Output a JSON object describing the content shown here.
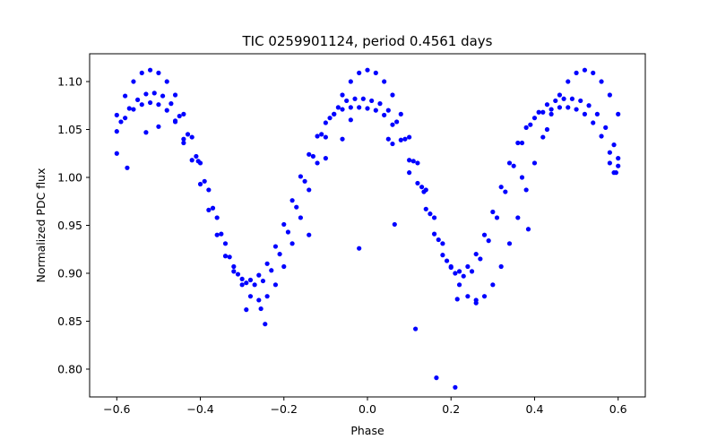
{
  "chart_data": {
    "type": "scatter",
    "title": "TIC 0259901124, period 0.4561 days",
    "xlabel": "Phase",
    "ylabel": "Normalized PDC flux",
    "xlim": [
      -0.665,
      0.665
    ],
    "ylim": [
      0.771,
      1.129
    ],
    "xticks": [
      -0.6,
      -0.4,
      -0.2,
      0.0,
      0.2,
      0.4,
      0.6
    ],
    "xtick_labels": [
      "−0.6",
      "−0.4",
      "−0.2",
      "0.0",
      "0.2",
      "0.4",
      "0.6"
    ],
    "yticks": [
      0.8,
      0.85,
      0.9,
      0.95,
      1.0,
      1.05,
      1.1
    ],
    "ytick_labels": [
      "0.80",
      "0.85",
      "0.90",
      "0.95",
      "1.00",
      "1.05",
      "1.10"
    ],
    "grid": false,
    "marker_color": "#0000ff",
    "series": [
      {
        "points": [
          [
            -0.6,
            1.065
          ],
          [
            -0.58,
            1.085
          ],
          [
            -0.56,
            1.1
          ],
          [
            -0.54,
            1.109
          ],
          [
            -0.52,
            1.112
          ],
          [
            -0.5,
            1.109
          ],
          [
            -0.48,
            1.1
          ],
          [
            -0.46,
            1.086
          ],
          [
            -0.44,
            1.066
          ],
          [
            -0.42,
            1.042
          ],
          [
            -0.4,
            1.015
          ],
          [
            -0.38,
            0.987
          ],
          [
            -0.36,
            0.958
          ],
          [
            -0.34,
            0.931
          ],
          [
            -0.32,
            0.907
          ],
          [
            -0.3,
            0.888
          ],
          [
            -0.28,
            0.876
          ],
          [
            -0.26,
            0.872
          ],
          [
            -0.24,
            0.876
          ],
          [
            -0.22,
            0.888
          ],
          [
            -0.2,
            0.907
          ],
          [
            -0.18,
            0.931
          ],
          [
            -0.16,
            0.958
          ],
          [
            -0.14,
            0.987
          ],
          [
            -0.12,
            1.015
          ],
          [
            -0.1,
            1.042
          ],
          [
            -0.08,
            1.066
          ],
          [
            -0.06,
            1.086
          ],
          [
            -0.04,
            1.1
          ],
          [
            -0.02,
            1.109
          ],
          [
            0.0,
            1.112
          ],
          [
            0.02,
            1.109
          ],
          [
            0.04,
            1.1
          ],
          [
            0.06,
            1.086
          ],
          [
            0.08,
            1.066
          ],
          [
            0.1,
            1.042
          ],
          [
            0.12,
            1.015
          ],
          [
            0.14,
            0.987
          ],
          [
            0.16,
            0.958
          ],
          [
            0.18,
            0.931
          ],
          [
            0.2,
            0.907
          ],
          [
            0.22,
            0.888
          ],
          [
            0.24,
            0.876
          ],
          [
            0.26,
            0.872
          ],
          [
            0.28,
            0.876
          ],
          [
            0.3,
            0.888
          ],
          [
            0.32,
            0.907
          ],
          [
            0.34,
            0.931
          ],
          [
            0.36,
            0.958
          ],
          [
            0.38,
            0.987
          ],
          [
            0.4,
            1.015
          ],
          [
            0.42,
            1.042
          ],
          [
            0.44,
            1.066
          ],
          [
            0.46,
            1.086
          ],
          [
            0.48,
            1.1
          ],
          [
            0.5,
            1.109
          ],
          [
            0.52,
            1.112
          ],
          [
            0.54,
            1.109
          ],
          [
            0.56,
            1.1
          ],
          [
            0.58,
            1.086
          ],
          [
            0.6,
            1.066
          ],
          [
            -0.59,
            1.058
          ],
          [
            -0.57,
            1.072
          ],
          [
            -0.55,
            1.081
          ],
          [
            -0.53,
            1.087
          ],
          [
            -0.51,
            1.088
          ],
          [
            -0.49,
            1.085
          ],
          [
            -0.47,
            1.077
          ],
          [
            -0.45,
            1.064
          ],
          [
            -0.43,
            1.045
          ],
          [
            -0.41,
            1.022
          ],
          [
            -0.39,
            0.996
          ],
          [
            -0.37,
            0.968
          ],
          [
            -0.35,
            0.941
          ],
          [
            -0.33,
            0.917
          ],
          [
            -0.31,
            0.899
          ],
          [
            -0.29,
            0.89
          ],
          [
            -0.27,
            0.888
          ],
          [
            -0.25,
            0.892
          ],
          [
            -0.23,
            0.903
          ],
          [
            -0.21,
            0.92
          ],
          [
            -0.19,
            0.943
          ],
          [
            -0.17,
            0.969
          ],
          [
            -0.15,
            0.996
          ],
          [
            -0.13,
            1.022
          ],
          [
            -0.11,
            1.045
          ],
          [
            -0.09,
            1.062
          ],
          [
            -0.07,
            1.073
          ],
          [
            -0.05,
            1.08
          ],
          [
            -0.03,
            1.082
          ],
          [
            -0.01,
            1.082
          ],
          [
            0.01,
            1.08
          ],
          [
            0.03,
            1.077
          ],
          [
            0.05,
            1.07
          ],
          [
            0.07,
            1.058
          ],
          [
            0.09,
            1.04
          ],
          [
            0.11,
            1.017
          ],
          [
            0.13,
            0.99
          ],
          [
            0.15,
            0.962
          ],
          [
            0.17,
            0.935
          ],
          [
            0.19,
            0.913
          ],
          [
            0.21,
            0.9
          ],
          [
            0.23,
            0.897
          ],
          [
            0.25,
            0.902
          ],
          [
            0.27,
            0.915
          ],
          [
            0.29,
            0.934
          ],
          [
            0.31,
            0.958
          ],
          [
            0.33,
            0.985
          ],
          [
            0.35,
            1.012
          ],
          [
            0.37,
            1.036
          ],
          [
            0.39,
            1.055
          ],
          [
            0.41,
            1.068
          ],
          [
            0.43,
            1.076
          ],
          [
            0.45,
            1.08
          ],
          [
            0.47,
            1.082
          ],
          [
            0.49,
            1.082
          ],
          [
            0.51,
            1.08
          ],
          [
            0.53,
            1.075
          ],
          [
            0.55,
            1.066
          ],
          [
            0.57,
            1.052
          ],
          [
            0.59,
            1.034
          ],
          [
            -0.6,
            1.048
          ],
          [
            -0.58,
            1.062
          ],
          [
            -0.56,
            1.071
          ],
          [
            -0.54,
            1.076
          ],
          [
            -0.52,
            1.078
          ],
          [
            -0.5,
            1.076
          ],
          [
            -0.48,
            1.07
          ],
          [
            -0.46,
            1.058
          ],
          [
            -0.44,
            1.04
          ],
          [
            -0.42,
            1.018
          ],
          [
            -0.4,
            0.993
          ],
          [
            -0.38,
            0.966
          ],
          [
            -0.36,
            0.94
          ],
          [
            -0.34,
            0.918
          ],
          [
            -0.32,
            0.902
          ],
          [
            -0.3,
            0.894
          ],
          [
            -0.28,
            0.893
          ],
          [
            -0.26,
            0.898
          ],
          [
            -0.24,
            0.91
          ],
          [
            -0.22,
            0.928
          ],
          [
            -0.2,
            0.951
          ],
          [
            -0.18,
            0.976
          ],
          [
            -0.16,
            1.001
          ],
          [
            -0.14,
            1.024
          ],
          [
            -0.12,
            1.043
          ],
          [
            -0.1,
            1.057
          ],
          [
            -0.08,
            1.066
          ],
          [
            -0.06,
            1.071
          ],
          [
            -0.04,
            1.073
          ],
          [
            -0.02,
            1.073
          ],
          [
            0.0,
            1.072
          ],
          [
            0.02,
            1.07
          ],
          [
            0.04,
            1.065
          ],
          [
            0.06,
            1.055
          ],
          [
            0.08,
            1.039
          ],
          [
            0.1,
            1.018
          ],
          [
            0.12,
            0.994
          ],
          [
            0.14,
            0.967
          ],
          [
            0.16,
            0.941
          ],
          [
            0.18,
            0.919
          ],
          [
            0.2,
            0.906
          ],
          [
            0.22,
            0.902
          ],
          [
            0.24,
            0.907
          ],
          [
            0.26,
            0.92
          ],
          [
            0.28,
            0.94
          ],
          [
            0.3,
            0.964
          ],
          [
            0.32,
            0.99
          ],
          [
            0.34,
            1.015
          ],
          [
            0.36,
            1.036
          ],
          [
            0.38,
            1.052
          ],
          [
            0.4,
            1.062
          ],
          [
            0.42,
            1.068
          ],
          [
            0.44,
            1.071
          ],
          [
            0.46,
            1.073
          ],
          [
            0.48,
            1.073
          ],
          [
            0.5,
            1.071
          ],
          [
            0.52,
            1.066
          ],
          [
            0.54,
            1.057
          ],
          [
            0.56,
            1.043
          ],
          [
            0.58,
            1.026
          ],
          [
            0.6,
            1.012
          ],
          [
            -0.6,
            1.025
          ],
          [
            -0.575,
            1.01
          ],
          [
            -0.53,
            1.047
          ],
          [
            -0.5,
            1.053
          ],
          [
            -0.46,
            1.059
          ],
          [
            -0.44,
            1.036
          ],
          [
            -0.405,
            1.017
          ],
          [
            -0.255,
            0.863
          ],
          [
            -0.245,
            0.847
          ],
          [
            -0.29,
            0.862
          ],
          [
            -0.14,
            0.94
          ],
          [
            -0.02,
            0.926
          ],
          [
            0.065,
            0.951
          ],
          [
            0.115,
            0.842
          ],
          [
            0.135,
            0.985
          ],
          [
            0.165,
            0.791
          ],
          [
            0.21,
            0.781
          ],
          [
            0.215,
            0.873
          ],
          [
            0.26,
            0.869
          ],
          [
            0.385,
            0.946
          ],
          [
            0.37,
            1.0
          ],
          [
            0.43,
            1.05
          ],
          [
            0.58,
            1.015
          ],
          [
            0.59,
            1.005
          ],
          [
            0.595,
            1.005
          ],
          [
            0.6,
            1.02
          ],
          [
            -0.06,
            1.04
          ],
          [
            -0.04,
            1.06
          ],
          [
            0.05,
            1.04
          ],
          [
            0.06,
            1.035
          ],
          [
            -0.1,
            1.02
          ],
          [
            0.1,
            1.005
          ]
        ]
      }
    ]
  }
}
